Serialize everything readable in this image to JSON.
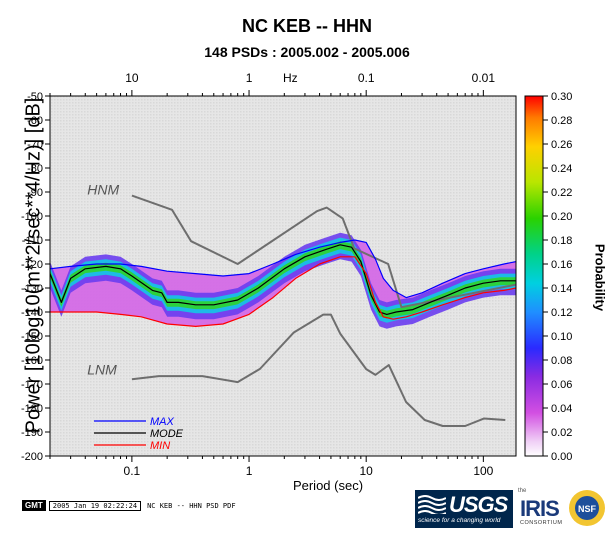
{
  "title": "NC KEB -- HHN",
  "subtitle": "148 PSDs : 2005.002 - 2005.006",
  "footer": {
    "gmt_badge": "GMT",
    "gmt_date": "2005 Jan 19 02:22:24",
    "caption": "NC KEB -- HHN PSD PDF"
  },
  "logos": {
    "usgs_name": "USGS",
    "usgs_tagline": "science for a changing world",
    "iris_prefix": "the",
    "iris_name": "IRIS",
    "iris_suffix": "CONSORTIUM",
    "nsf_name": "NSF"
  },
  "colors": {
    "hnm_lnm": "#6e6e6e",
    "max": "#0000ff",
    "mode": "#000000",
    "min": "#ff0000",
    "background_cell": "#e0e0e0"
  },
  "chart_data": {
    "type": "heatmap",
    "title": "NC KEB -- HHN",
    "subtitle": "148 PSDs : 2005.002 - 2005.006",
    "xlabel": "Period (sec)",
    "top_xlabel": "Hz",
    "ylabel": "Power [10log10(m**2/sec**4/Hz)] [dB]",
    "colorbar_label": "Probability",
    "xscale": "log",
    "xlim": [
      0.02,
      190
    ],
    "ylim": [
      -200,
      -50
    ],
    "y_ticks": [
      -50,
      -60,
      -70,
      -80,
      -90,
      -100,
      -110,
      -120,
      -130,
      -140,
      -150,
      -160,
      -170,
      -180,
      -190,
      -200
    ],
    "x_ticks": [
      {
        "value": 0.1,
        "label": "0.1"
      },
      {
        "value": 1,
        "label": "1"
      },
      {
        "value": 10,
        "label": "10"
      },
      {
        "value": 100,
        "label": "100"
      }
    ],
    "top_ticks": [
      {
        "value": 10,
        "label": "10"
      },
      {
        "value": 1,
        "label": "1"
      },
      {
        "value": 0.1,
        "label": "0.1"
      },
      {
        "value": 0.01,
        "label": "0.01"
      }
    ],
    "colorbar_range": [
      0.0,
      0.3
    ],
    "colorbar_ticks": [
      "0.00",
      "0.02",
      "0.04",
      "0.06",
      "0.08",
      "0.10",
      "0.12",
      "0.14",
      "0.16",
      "0.18",
      "0.20",
      "0.22",
      "0.24",
      "0.26",
      "0.28",
      "0.30"
    ],
    "legend": [
      {
        "name": "MAX",
        "color": "#0000ff"
      },
      {
        "name": "MODE",
        "color": "#000000"
      },
      {
        "name": "MIN",
        "color": "#ff0000"
      }
    ],
    "legend_position": "bottom-left",
    "annotations": [
      {
        "text": "HNM",
        "x": 0.04,
        "y": -91
      },
      {
        "text": "LNM",
        "x": 0.04,
        "y": -166
      }
    ],
    "series": [
      {
        "name": "HNM",
        "x": [
          0.1,
          0.22,
          0.32,
          0.8,
          3.8,
          4.6,
          6.3,
          7.9,
          15.4,
          20,
          354.8
        ],
        "y": [
          -91.5,
          -97.4,
          -110.5,
          -120,
          -98,
          -96.5,
          -101,
          -113.5,
          -120,
          -138,
          -126
        ]
      },
      {
        "name": "LNM",
        "x": [
          0.1,
          0.17,
          0.4,
          0.8,
          1.24,
          2.4,
          4.3,
          5,
          6,
          10,
          12,
          15.6,
          21.9,
          31.6,
          45,
          70,
          101,
          154
        ],
        "y": [
          -168,
          -166.7,
          -166.7,
          -169.2,
          -163.7,
          -148.6,
          -141.1,
          -141.1,
          -149,
          -163.8,
          -166.2,
          -162.1,
          -177.5,
          -185,
          -187.5,
          -187.5,
          -184.4,
          -185
        ]
      },
      {
        "name": "MAX",
        "x": [
          0.02,
          0.03,
          0.05,
          0.08,
          0.12,
          0.2,
          0.35,
          0.6,
          1.0,
          1.6,
          2.5,
          4.0,
          6.0,
          8.0,
          10,
          12,
          14,
          17,
          22,
          30,
          45,
          70,
          100,
          150,
          190
        ],
        "y": [
          -122,
          -121,
          -120,
          -120,
          -121,
          -123,
          -124,
          -125,
          -124,
          -120,
          -116,
          -113,
          -111,
          -110,
          -111,
          -118,
          -126,
          -131,
          -134,
          -132,
          -128,
          -124,
          -122,
          -120,
          -119
        ]
      },
      {
        "name": "MODE",
        "x": [
          0.02,
          0.025,
          0.03,
          0.04,
          0.06,
          0.08,
          0.1,
          0.15,
          0.18,
          0.2,
          0.25,
          0.35,
          0.5,
          0.8,
          1.2,
          2.0,
          3.0,
          4.5,
          6.0,
          7.5,
          9.0,
          11,
          13,
          15,
          18,
          25,
          35,
          50,
          70,
          100,
          140,
          190
        ],
        "y": [
          -124,
          -136,
          -126,
          -122,
          -121,
          -122,
          -125,
          -131,
          -132,
          -136,
          -136,
          -137,
          -137,
          -135,
          -130,
          -122,
          -117,
          -114,
          -112,
          -113,
          -119,
          -133,
          -140,
          -141,
          -140,
          -139,
          -136,
          -133,
          -130,
          -128,
          -127,
          -127
        ]
      },
      {
        "name": "MIN",
        "x": [
          0.02,
          0.03,
          0.05,
          0.08,
          0.12,
          0.2,
          0.35,
          0.6,
          1.0,
          1.6,
          2.5,
          4.0,
          6.0,
          8.0,
          10,
          12,
          14,
          17,
          22,
          30,
          45,
          70,
          100,
          150,
          190
        ],
        "y": [
          -140,
          -140,
          -140,
          -141,
          -142,
          -145,
          -146,
          -145,
          -141,
          -134,
          -126,
          -120,
          -117,
          -117,
          -124,
          -136,
          -142,
          -143,
          -142,
          -140,
          -137,
          -134,
          -132,
          -131,
          -130
        ]
      }
    ]
  }
}
